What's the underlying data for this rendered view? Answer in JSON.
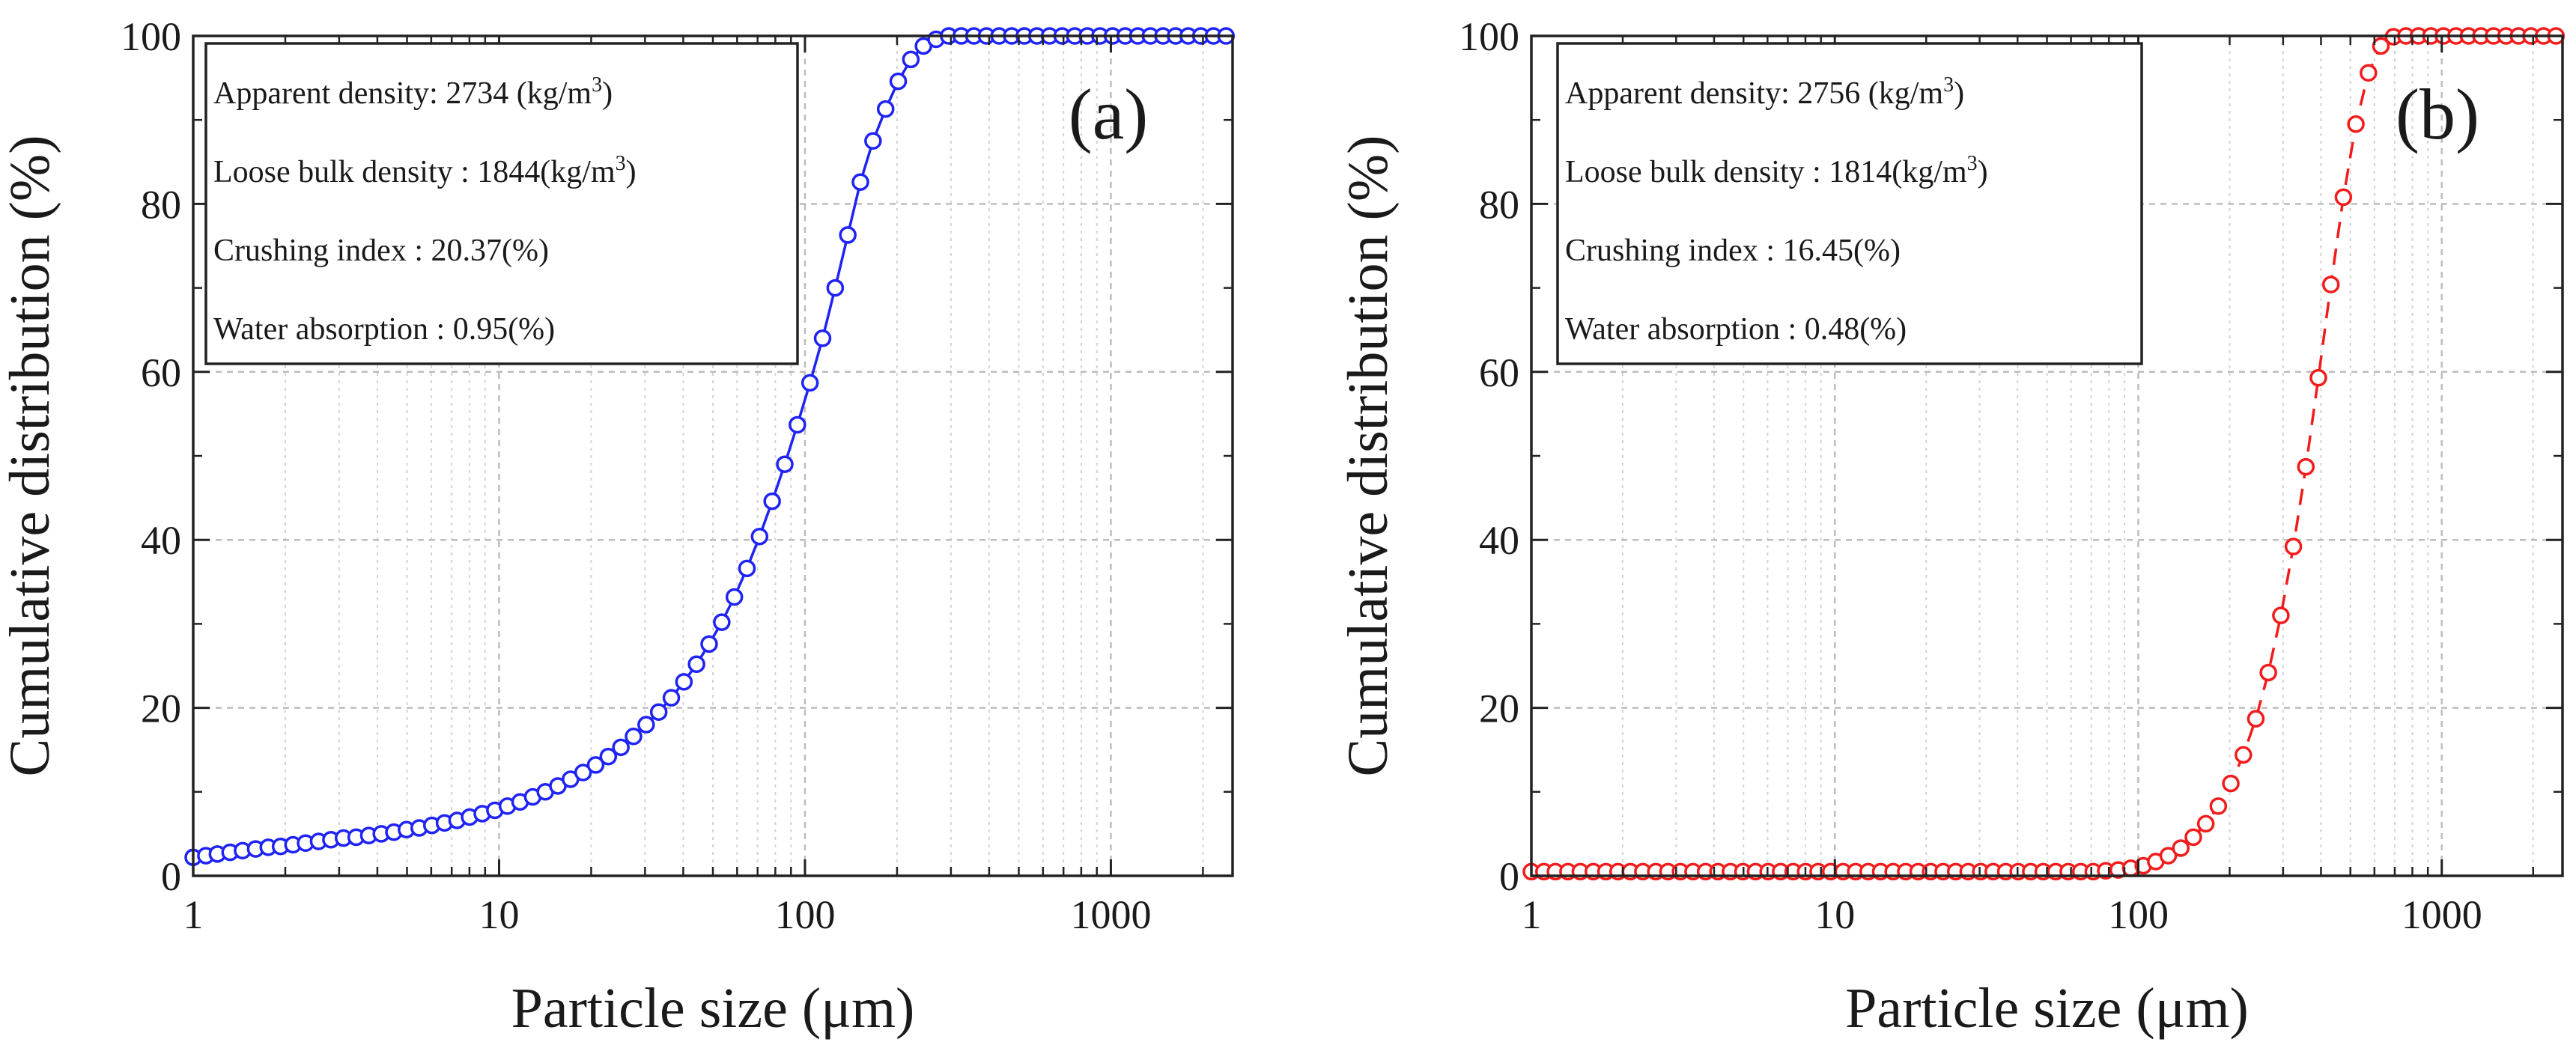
{
  "chart_data": [
    {
      "type": "scatter",
      "panel_label": "(a)",
      "color": "#1f23f5",
      "line_style": "solid",
      "xlabel": "Particle size (μm)",
      "ylabel": "Cumulative distribution (%)",
      "x_scale": "log",
      "xlim": [
        1,
        2500
      ],
      "ylim": [
        0,
        100
      ],
      "x_ticks": [
        1,
        10,
        100,
        1000
      ],
      "x_tick_labels": [
        "1",
        "10",
        "100",
        "1000"
      ],
      "y_ticks": [
        0,
        20,
        40,
        60,
        80,
        100
      ],
      "y_tick_labels": [
        "0",
        "20",
        "40",
        "60",
        "80",
        "100"
      ],
      "grid": true,
      "info_box": {
        "placement": "top-left",
        "lines": [
          {
            "text": "Apparent density: 2734 (kg/m",
            "sup": "3",
            "after": ")"
          },
          {
            "text": "Loose bulk density : 1844(kg/m",
            "sup": "3",
            "after": ")"
          },
          {
            "text": "Crushing index : 20.37(%)",
            "sup": "",
            "after": ""
          },
          {
            "text": "Water absorption : 0.95(%)",
            "sup": "",
            "after": ""
          }
        ]
      },
      "series": [
        {
          "name": "cumulative distribution (a)",
          "x": [
            1.0,
            1.1,
            1.2,
            1.32,
            1.45,
            1.6,
            1.76,
            1.93,
            2.12,
            2.33,
            2.57,
            2.82,
            3.1,
            3.41,
            3.75,
            4.12,
            4.53,
            4.98,
            5.48,
            6.03,
            6.63,
            7.29,
            8.01,
            8.81,
            9.69,
            10.65,
            11.71,
            12.88,
            14.16,
            15.57,
            17.12,
            18.82,
            20.69,
            22.75,
            25.02,
            27.51,
            30.25,
            33.26,
            36.57,
            40.21,
            44.21,
            48.61,
            53.45,
            58.77,
            64.62,
            71.05,
            78.12,
            85.9,
            94.45,
            103.85,
            114.19,
            125.56,
            138.06,
            151.8,
            166.91,
            183.53,
            201.8,
            221.89,
            243.98,
            268.27,
            294.98,
            324.34,
            356.63,
            392.14,
            431.18,
            474.1,
            521.3,
            573.2,
            630.27,
            693.01,
            762.0,
            837.86,
            921.27,
            1012.99,
            1113.84,
            1224.73,
            1346.65,
            1480.71,
            1628.13,
            1790.21,
            1968.43,
            2164.4,
            2379.87
          ],
          "y": [
            2.2,
            2.4,
            2.6,
            2.8,
            3.0,
            3.2,
            3.4,
            3.5,
            3.7,
            3.9,
            4.1,
            4.3,
            4.5,
            4.6,
            4.8,
            5.0,
            5.2,
            5.5,
            5.7,
            6.0,
            6.3,
            6.6,
            7.0,
            7.4,
            7.8,
            8.3,
            8.8,
            9.4,
            10.0,
            10.7,
            11.5,
            12.3,
            13.2,
            14.2,
            15.3,
            16.6,
            18.0,
            19.5,
            21.2,
            23.1,
            25.2,
            27.6,
            30.2,
            33.2,
            36.6,
            40.4,
            44.6,
            49.0,
            53.7,
            58.7,
            64.0,
            70.0,
            76.3,
            82.6,
            87.5,
            91.3,
            94.6,
            97.2,
            98.8,
            99.6,
            100.0,
            100.0,
            100.0,
            100.0,
            100.0,
            100.0,
            100.0,
            100.0,
            100.0,
            100.0,
            100.0,
            100.0,
            100.0,
            100.0,
            100.0,
            100.0,
            100.0,
            100.0,
            100.0,
            100.0,
            100.0,
            100.0,
            100.0
          ]
        }
      ]
    },
    {
      "type": "scatter",
      "panel_label": "(b)",
      "color": "#f21c1c",
      "line_style": "dashed",
      "xlabel": "Particle size (μm)",
      "ylabel": "Cumulative distribution (%)",
      "x_scale": "log",
      "xlim": [
        1,
        2500
      ],
      "ylim": [
        0,
        100
      ],
      "x_ticks": [
        1,
        10,
        100,
        1000
      ],
      "x_tick_labels": [
        "1",
        "10",
        "100",
        "1000"
      ],
      "y_ticks": [
        0,
        20,
        40,
        60,
        80,
        100
      ],
      "y_tick_labels": [
        "0",
        "20",
        "40",
        "60",
        "80",
        "100"
      ],
      "grid": true,
      "info_box": {
        "placement": "top-left",
        "lines": [
          {
            "text": "Apparent density: 2756 (kg/m",
            "sup": "3",
            "after": ")"
          },
          {
            "text": "Loose bulk density : 1814(kg/m",
            "sup": "3",
            "after": ")"
          },
          {
            "text": "Crushing index : 16.45(%)",
            "sup": "",
            "after": ""
          },
          {
            "text": "Water absorption : 0.48(%)",
            "sup": "",
            "after": ""
          }
        ]
      },
      "series": [
        {
          "name": "cumulative distribution (b)",
          "x": [
            1.0,
            1.1,
            1.2,
            1.32,
            1.45,
            1.6,
            1.76,
            1.93,
            2.12,
            2.33,
            2.57,
            2.82,
            3.1,
            3.41,
            3.75,
            4.12,
            4.53,
            4.98,
            5.48,
            6.03,
            6.63,
            7.29,
            8.01,
            8.81,
            9.69,
            10.65,
            11.71,
            12.88,
            14.16,
            15.57,
            17.12,
            18.82,
            20.69,
            22.75,
            25.02,
            27.51,
            30.25,
            33.26,
            36.57,
            40.21,
            44.21,
            48.61,
            53.45,
            58.77,
            64.62,
            71.05,
            78.12,
            85.9,
            94.45,
            103.85,
            114.19,
            125.56,
            138.06,
            151.8,
            166.91,
            183.53,
            201.8,
            221.89,
            243.98,
            268.27,
            294.98,
            324.34,
            356.63,
            392.14,
            431.18,
            474.1,
            521.3,
            573.2,
            630.27,
            693.01,
            762.0,
            837.86,
            921.27,
            1012.99,
            1113.84,
            1224.73,
            1346.65,
            1480.71,
            1628.13,
            1790.21,
            1968.43,
            2164.4,
            2379.87
          ],
          "y": [
            0.5,
            0.5,
            0.5,
            0.5,
            0.5,
            0.5,
            0.5,
            0.5,
            0.5,
            0.5,
            0.5,
            0.5,
            0.5,
            0.5,
            0.5,
            0.5,
            0.5,
            0.5,
            0.5,
            0.5,
            0.5,
            0.5,
            0.5,
            0.5,
            0.5,
            0.5,
            0.5,
            0.5,
            0.5,
            0.5,
            0.5,
            0.5,
            0.5,
            0.5,
            0.5,
            0.5,
            0.5,
            0.5,
            0.5,
            0.5,
            0.5,
            0.5,
            0.5,
            0.5,
            0.5,
            0.5,
            0.6,
            0.7,
            0.9,
            1.2,
            1.7,
            2.4,
            3.3,
            4.6,
            6.2,
            8.3,
            11.0,
            14.4,
            18.7,
            24.2,
            31.0,
            39.2,
            48.7,
            59.3,
            70.4,
            80.8,
            89.5,
            95.6,
            98.8,
            99.9,
            100.0,
            100.0,
            100.0,
            100.0,
            100.0,
            100.0,
            100.0,
            100.0,
            100.0,
            100.0,
            100.0,
            100.0,
            100.0
          ]
        }
      ]
    }
  ]
}
